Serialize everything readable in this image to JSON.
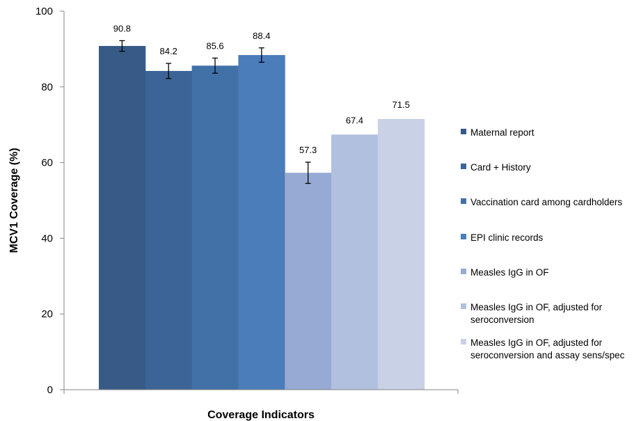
{
  "chart_data": {
    "type": "bar",
    "xlabel": "Coverage Indicators",
    "ylabel": "MCV1 Coverage (%)",
    "ylim": [
      0,
      100
    ],
    "yticks": [
      0,
      20,
      40,
      60,
      80,
      100
    ],
    "grid": false,
    "legend_position": "right",
    "series": [
      {
        "name": "Maternal report",
        "value": 90.8,
        "error": 1.4,
        "color": "#375a87"
      },
      {
        "name": "Card + History",
        "value": 84.2,
        "error": 2.0,
        "color": "#3c6497"
      },
      {
        "name": "Vaccination card among cardholders",
        "value": 85.6,
        "error": 2.0,
        "color": "#4271a8"
      },
      {
        "name": "EPI clinic records",
        "value": 88.4,
        "error": 1.9,
        "color": "#4a7db9"
      },
      {
        "name": "Measles IgG in OF",
        "value": 57.3,
        "error": 2.8,
        "color": "#97aad3"
      },
      {
        "name": "Measles IgG in OF, adjusted for seroconversion",
        "value": 67.4,
        "error": null,
        "color": "#b2c0df"
      },
      {
        "name": "Measles IgG in OF, adjusted for seroconversion and assay sens/spec",
        "value": 71.5,
        "error": null,
        "color": "#c8d1e6"
      }
    ]
  }
}
